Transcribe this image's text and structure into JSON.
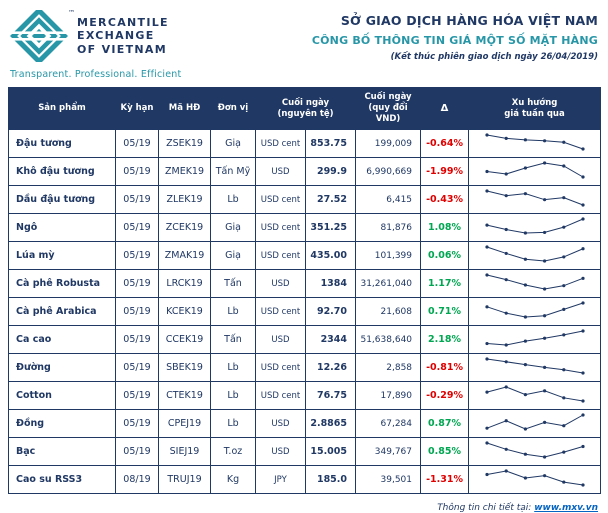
{
  "colors": {
    "navy": "#203864",
    "teal": "#2797a8",
    "red": "#e00000",
    "green": "#00a651",
    "link": "#0563c1"
  },
  "header": {
    "logo": {
      "tm": "™",
      "brand_line1": "MERCANTILE",
      "brand_line2": "EXCHANGE",
      "brand_line3": "OF VIETNAM",
      "tagline": "Transparent. Professional. Efficient"
    },
    "title": "SỞ GIAO DỊCH HÀNG HÓA VIỆT NAM",
    "subtitle": "CÔNG BỐ THÔNG TIN GIÁ MỘT SỐ MẶT HÀNG",
    "note": "(Kết thúc phiên giao dịch ngày 26/04/2019)"
  },
  "table": {
    "headers": {
      "product": "Sản phẩm",
      "term": "Kỳ hạn",
      "code": "Mã HĐ",
      "unit": "Đơn vị",
      "close_original_line1": "Cuối ngày",
      "close_original_line2": "(nguyên tệ)",
      "close_vnd_line1": "Cuối ngày",
      "close_vnd_line2": "(quy đổi VND)",
      "delta": "Δ",
      "trend_line1": "Xu hướng",
      "trend_line2": "giá tuần qua"
    },
    "rows": [
      {
        "product": "Đậu tương",
        "term": "05/19",
        "code": "ZSEK19",
        "unit": "Giạ",
        "currency": "USD cent",
        "close": "853.75",
        "vnd": "199,009",
        "delta": "-0.64%",
        "trend": [
          80,
          66,
          60,
          56,
          50,
          22
        ]
      },
      {
        "product": "Khô đậu tương",
        "term": "05/19",
        "code": "ZMEK19",
        "unit": "Tấn Mỹ",
        "currency": "USD",
        "close": "299.9",
        "vnd": "6,990,669",
        "delta": "-1.99%",
        "trend": [
          48,
          38,
          62,
          82,
          70,
          26
        ]
      },
      {
        "product": "Dầu đậu tương",
        "term": "05/19",
        "code": "ZLEK19",
        "unit": "Lb",
        "currency": "USD cent",
        "close": "27.52",
        "vnd": "6,415",
        "delta": "-0.43%",
        "trend": [
          70,
          56,
          62,
          44,
          50,
          28
        ]
      },
      {
        "product": "Ngô",
        "term": "05/19",
        "code": "ZCEK19",
        "unit": "Giạ",
        "currency": "USD cent",
        "close": "351.25",
        "vnd": "81,876",
        "delta": "1.08%",
        "trend": [
          55,
          40,
          28,
          30,
          48,
          76
        ]
      },
      {
        "product": "Lúa mỳ",
        "term": "05/19",
        "code": "ZMAK19",
        "unit": "Giạ",
        "currency": "USD cent",
        "close": "435.00",
        "vnd": "101,399",
        "delta": "0.06%",
        "trend": [
          72,
          50,
          30,
          24,
          38,
          66
        ]
      },
      {
        "product": "Cà phê Robusta",
        "term": "05/19",
        "code": "LRCK19",
        "unit": "Tấn",
        "currency": "USD",
        "close": "1384",
        "vnd": "31,261,040",
        "delta": "1.17%",
        "trend": [
          74,
          60,
          44,
          32,
          42,
          64
        ]
      },
      {
        "product": "Cà phê Arabica",
        "term": "05/19",
        "code": "KCEK19",
        "unit": "Lb",
        "currency": "USD cent",
        "close": "92.70",
        "vnd": "21,608",
        "delta": "0.71%",
        "trend": [
          60,
          40,
          28,
          32,
          52,
          72
        ]
      },
      {
        "product": "Ca cao",
        "term": "05/19",
        "code": "CCEK19",
        "unit": "Tấn",
        "currency": "USD",
        "close": "2344",
        "vnd": "51,638,640",
        "delta": "2.18%",
        "trend": [
          34,
          28,
          44,
          56,
          70,
          86
        ]
      },
      {
        "product": "Đường",
        "term": "05/19",
        "code": "SBEK19",
        "unit": "Lb",
        "currency": "USD cent",
        "close": "12.26",
        "vnd": "2,858",
        "delta": "-0.81%",
        "trend": [
          82,
          70,
          58,
          46,
          36,
          22
        ]
      },
      {
        "product": "Cotton",
        "term": "05/19",
        "code": "CTEK19",
        "unit": "Lb",
        "currency": "USD cent",
        "close": "76.75",
        "vnd": "17,890",
        "delta": "-0.29%",
        "trend": [
          56,
          72,
          48,
          60,
          38,
          28
        ]
      },
      {
        "product": "Đồng",
        "term": "05/19",
        "code": "CPEJ19",
        "unit": "Lb",
        "currency": "USD",
        "close": "2.8865",
        "vnd": "67,284",
        "delta": "0.87%",
        "trend": [
          40,
          58,
          38,
          54,
          46,
          72
        ]
      },
      {
        "product": "Bạc",
        "term": "05/19",
        "code": "SIEJ19",
        "unit": "T.oz",
        "currency": "USD",
        "close": "15.005",
        "vnd": "349,767",
        "delta": "0.85%",
        "trend": [
          68,
          50,
          36,
          28,
          42,
          58
        ]
      },
      {
        "product": "Cao su RSS3",
        "term": "08/19",
        "code": "TRUJ19",
        "unit": "Kg",
        "currency": "JPY",
        "close": "185.0",
        "vnd": "39,501",
        "delta": "-1.31%",
        "trend": [
          62,
          74,
          50,
          58,
          36,
          26
        ]
      }
    ]
  },
  "footer": {
    "text": "Thông tin chi tiết tại:",
    "link": "www.mxv.vn"
  }
}
